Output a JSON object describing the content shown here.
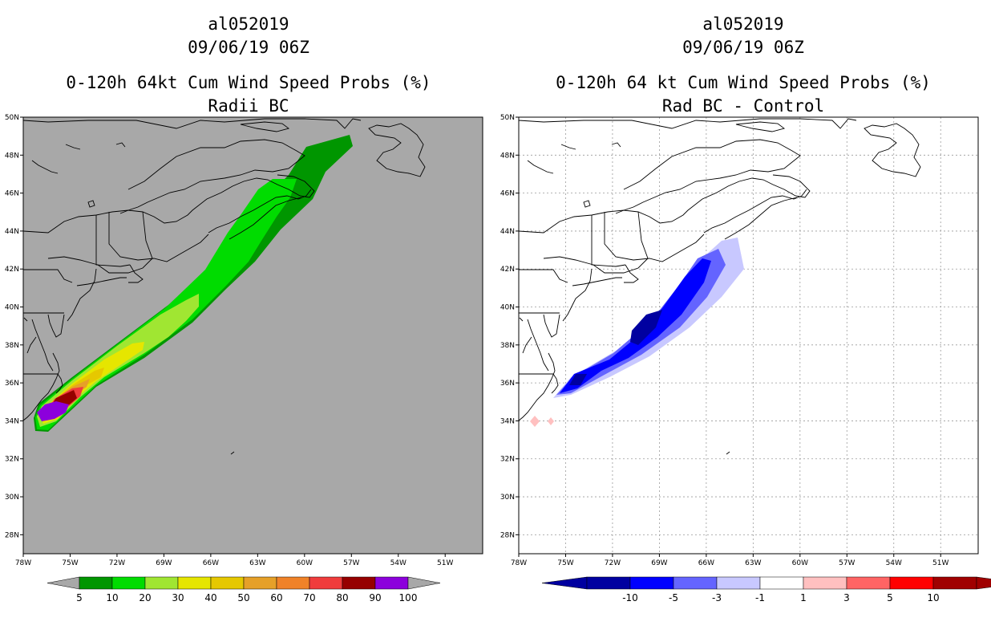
{
  "panels": [
    {
      "title1": "al052019",
      "title2": "09/06/19 06Z",
      "title3": "0-120h 64kt Cum Wind Speed Probs (%)",
      "title4": "Radii BC",
      "background": "#a8a8a8",
      "colorbar": {
        "colors": [
          "#009600",
          "#00dc00",
          "#a0e632",
          "#e6e600",
          "#e6c800",
          "#e6a028",
          "#f08228",
          "#f03c3c",
          "#960000",
          "#8c00dc"
        ],
        "labels": [
          "5",
          "10",
          "20",
          "30",
          "40",
          "50",
          "60",
          "70",
          "80",
          "90",
          "100"
        ],
        "end_color": "#a8a8a8"
      }
    },
    {
      "title1": "al052019",
      "title2": "09/06/19 06Z",
      "title3": "0-120h 64 kt Cum Wind Speed Probs (%)",
      "title4": "Rad BC - Control",
      "background": "#ffffff",
      "colorbar": {
        "colors": [
          "#0000a0",
          "#0000ff",
          "#6464ff",
          "#c8c8ff",
          "#ffffff",
          "#ffc0c0",
          "#ff6464",
          "#ff0000",
          "#a00000"
        ],
        "labels": [
          "-10",
          "-5",
          "-3",
          "-1",
          "1",
          "3",
          "5",
          "10"
        ],
        "low_color": "#0000a0",
        "high_color": "#a00000"
      }
    }
  ],
  "axes": {
    "lat_labels": [
      "50N",
      "48N",
      "46N",
      "44N",
      "42N",
      "40N",
      "38N",
      "36N",
      "34N",
      "32N",
      "30N",
      "28N"
    ],
    "lon_labels": [
      "78W",
      "75W",
      "72W",
      "69W",
      "66W",
      "63W",
      "60W",
      "57W",
      "54W",
      "51W"
    ]
  },
  "map_data": {
    "lat_range": [
      27,
      50
    ],
    "lon_range": [
      -78,
      -48.6
    ],
    "track": {
      "name": "al052019",
      "centerline": [
        [
          -76.5,
          34.1
        ],
        [
          -75.5,
          35.0
        ],
        [
          -74.0,
          36.2
        ],
        [
          -71.5,
          38.2
        ],
        [
          -68.5,
          40.3
        ],
        [
          -65.5,
          42.8
        ],
        [
          -63.5,
          45.2
        ],
        [
          -60.5,
          47.5
        ],
        [
          -57.5,
          49.0
        ]
      ]
    }
  }
}
